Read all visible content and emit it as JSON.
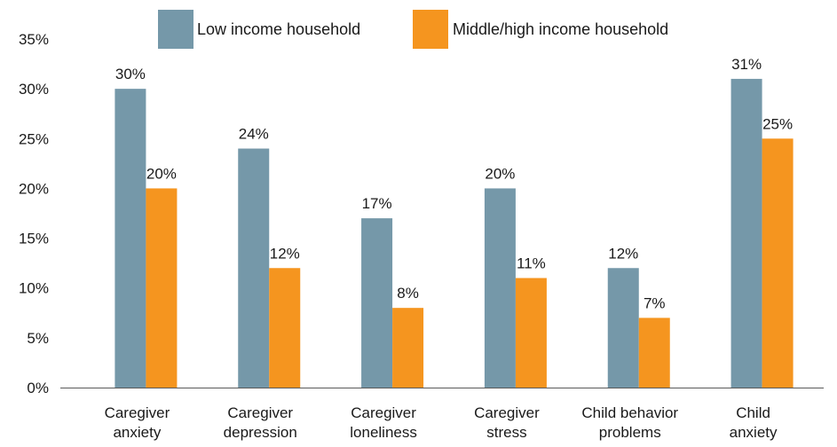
{
  "chart_data": {
    "type": "bar",
    "categories": [
      [
        "Caregiver",
        "anxiety"
      ],
      [
        "Caregiver",
        "depression"
      ],
      [
        "Caregiver",
        "loneliness"
      ],
      [
        "Caregiver",
        "stress"
      ],
      [
        "Child behavior",
        "problems"
      ],
      [
        "Child",
        "anxiety"
      ]
    ],
    "series": [
      {
        "name": "Low income household",
        "color": "#7598a9",
        "values": [
          30,
          24,
          17,
          20,
          12,
          31
        ],
        "labels": [
          "30%",
          "24%",
          "17%",
          "20%",
          "12%",
          "31%"
        ]
      },
      {
        "name": "Middle/high income household",
        "color": "#f5951f",
        "values": [
          20,
          12,
          8,
          11,
          7,
          25
        ],
        "labels": [
          "20%",
          "12%",
          "8%",
          "11%",
          "7%",
          "25%"
        ]
      }
    ],
    "ylim": [
      0,
      35
    ],
    "yticks": [
      "0%",
      "5%",
      "10%",
      "15%",
      "20%",
      "25%",
      "30%",
      "35%"
    ],
    "legend_position": "top",
    "grid": false,
    "axis_color": "#595959"
  }
}
